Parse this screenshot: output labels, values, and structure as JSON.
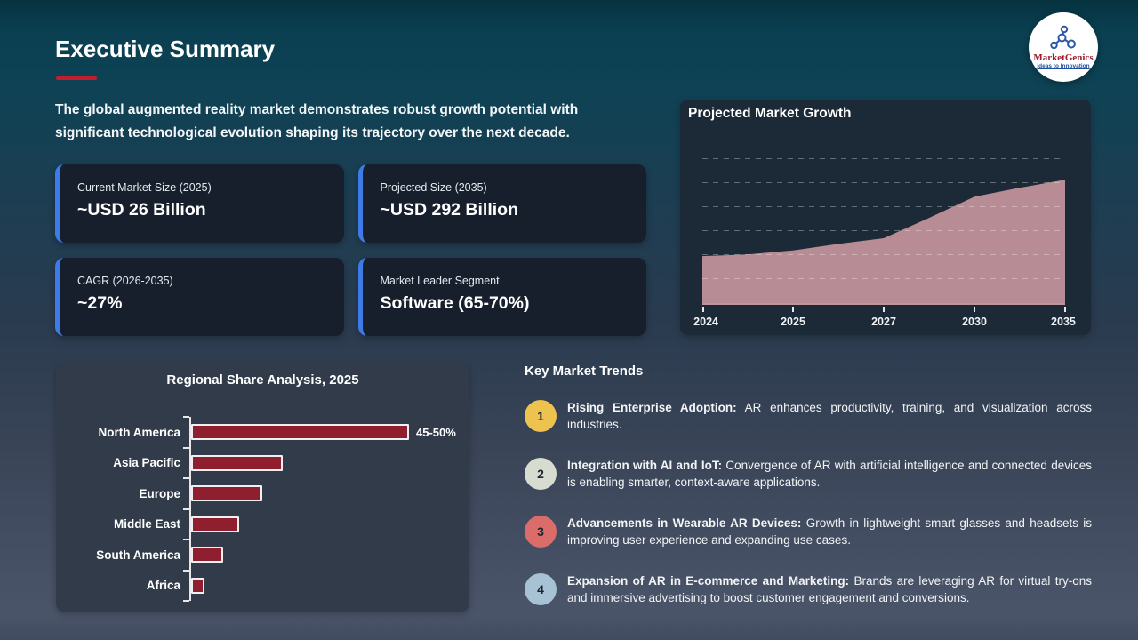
{
  "header": {
    "title": "Executive Summary",
    "intro": "The global augmented reality market demonstrates robust growth potential with significant technological evolution shaping its trajectory over the next decade."
  },
  "logo": {
    "name": "MarketGenics",
    "tagline": "Ideas to Innovation"
  },
  "colors": {
    "red_accent": "#c11f2d",
    "stat_accent_blue": "#3d7ce8"
  },
  "stats": [
    {
      "label": "Current Market Size (2025)",
      "value": "~USD 26 Billion"
    },
    {
      "label": "Projected Size (2035)",
      "value": "~USD 292 Billion"
    },
    {
      "label": "CAGR (2026-2035)",
      "value": "~27%"
    },
    {
      "label": "Market Leader Segment",
      "value": "Software (65-70%)"
    }
  ],
  "chart_data": [
    {
      "type": "area",
      "title": "Projected Market Growth",
      "x": [
        "2024",
        "2025",
        "2027",
        "2030",
        "2035"
      ],
      "values_relative": [
        0.3,
        0.335,
        0.41,
        0.665,
        0.77
      ],
      "shape_points": [
        [
          0,
          0.3
        ],
        [
          0.125,
          0.31
        ],
        [
          0.25,
          0.335
        ],
        [
          0.375,
          0.375
        ],
        [
          0.5,
          0.41
        ],
        [
          0.625,
          0.535
        ],
        [
          0.75,
          0.665
        ],
        [
          0.875,
          0.72
        ],
        [
          1,
          0.77
        ]
      ],
      "fill": "#bd9198",
      "grid": "horizontal dashed, no y-axis labels",
      "legend": "none"
    },
    {
      "type": "bar",
      "title": "Regional Share Analysis, 2025",
      "orientation": "horizontal",
      "categories": [
        "North America",
        "Asia Pacific",
        "Europe",
        "Middle East",
        "South America",
        "Africa"
      ],
      "values": [
        47.5,
        20,
        15.5,
        10.5,
        7,
        3
      ],
      "value_labels": [
        "45-50%",
        "",
        "",
        "",
        "",
        ""
      ],
      "bar_color": "#8f1f2e",
      "xlabel": "",
      "ylabel": "",
      "grid": "off",
      "legend": "none"
    }
  ],
  "trends": {
    "title": "Key Market Trends",
    "items": [
      {
        "num": "1",
        "color": "#eec24f",
        "lead": "Rising Enterprise Adoption:",
        "text": "AR enhances productivity, training, and visualization across industries."
      },
      {
        "num": "2",
        "color": "#d7dcd1",
        "lead": "Integration with AI and IoT:",
        "text": "Convergence of AR with artificial intelligence and connected devices is enabling smarter, context-aware applications."
      },
      {
        "num": "3",
        "color": "#da6c6a",
        "lead": "Advancements in Wearable AR Devices:",
        "text": "Growth in lightweight smart glasses and headsets is improving user experience and expanding use cases."
      },
      {
        "num": "4",
        "color": "#a7c2d5",
        "lead": "Expansion of AR in E-commerce and Marketing:",
        "text": "Brands are leveraging AR for virtual try-ons and immersive advertising to boost customer engagement and conversions."
      }
    ]
  }
}
